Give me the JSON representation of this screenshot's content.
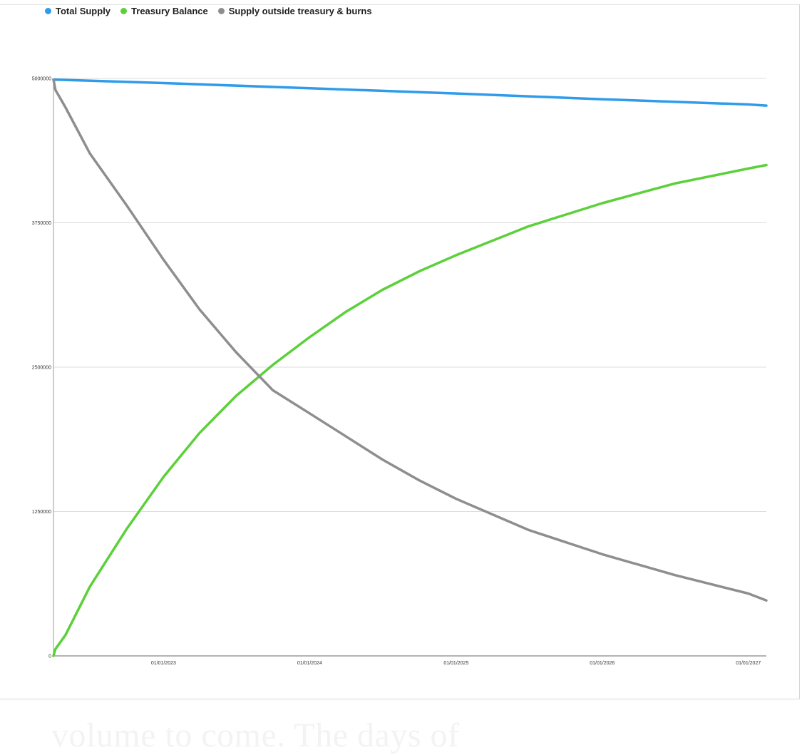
{
  "legend": [
    {
      "name": "Total Supply",
      "color": "#2f9bea"
    },
    {
      "name": "Treasury Balance",
      "color": "#5cd03a"
    },
    {
      "name": "Supply outside treasury & burns",
      "color": "#8e8e8e"
    }
  ],
  "chart_data": {
    "type": "line",
    "title": "",
    "xlabel": "",
    "ylabel": "",
    "ylim": [
      0,
      5000000
    ],
    "yticks": [
      "0",
      "1250000",
      "2500000",
      "3750000",
      "5000000"
    ],
    "xticks": [
      "01/01/2023",
      "01/01/2024",
      "01/01/2025",
      "01/01/2026",
      "01/01/2027"
    ],
    "xlim": [
      "2022-04-01",
      "2027-02-15"
    ],
    "grid": true,
    "legend_position": "top-left",
    "series": [
      {
        "name": "Total Supply",
        "color": "#2f9bea",
        "x": [
          "2022-04-01",
          "2023-01-01",
          "2024-01-01",
          "2025-01-01",
          "2026-01-01",
          "2027-01-01",
          "2027-02-15"
        ],
        "y": [
          4990000,
          4960000,
          4915000,
          4870000,
          4820000,
          4775000,
          4765000
        ]
      },
      {
        "name": "Treasury Balance",
        "color": "#5cd03a",
        "x": [
          "2022-04-01",
          "2022-04-06",
          "2022-05-01",
          "2022-07-01",
          "2022-10-01",
          "2023-01-01",
          "2023-04-01",
          "2023-07-01",
          "2023-10-01",
          "2024-01-01",
          "2024-04-01",
          "2024-07-01",
          "2024-10-01",
          "2025-01-01",
          "2025-07-01",
          "2026-01-01",
          "2026-07-01",
          "2027-01-01",
          "2027-02-15"
        ],
        "y": [
          0,
          60000,
          180000,
          600000,
          1100000,
          1550000,
          1930000,
          2250000,
          2520000,
          2760000,
          2980000,
          3170000,
          3330000,
          3470000,
          3720000,
          3920000,
          4090000,
          4220000,
          4250000
        ]
      },
      {
        "name": "Supply outside treasury & burns",
        "color": "#8e8e8e",
        "x": [
          "2022-04-01",
          "2022-04-06",
          "2022-05-01",
          "2022-07-01",
          "2022-10-01",
          "2023-01-01",
          "2023-04-01",
          "2023-07-01",
          "2023-10-01",
          "2024-01-01",
          "2024-04-01",
          "2024-07-01",
          "2024-10-01",
          "2025-01-01",
          "2025-07-01",
          "2026-01-01",
          "2026-07-01",
          "2027-01-01",
          "2027-02-15"
        ],
        "y": [
          4990000,
          4900000,
          4750000,
          4350000,
          3900000,
          3430000,
          3000000,
          2630000,
          2300000,
          2100000,
          1900000,
          1700000,
          1520000,
          1360000,
          1090000,
          880000,
          700000,
          540000,
          480000
        ]
      }
    ]
  },
  "overlay_text": "volume to come. The days of"
}
